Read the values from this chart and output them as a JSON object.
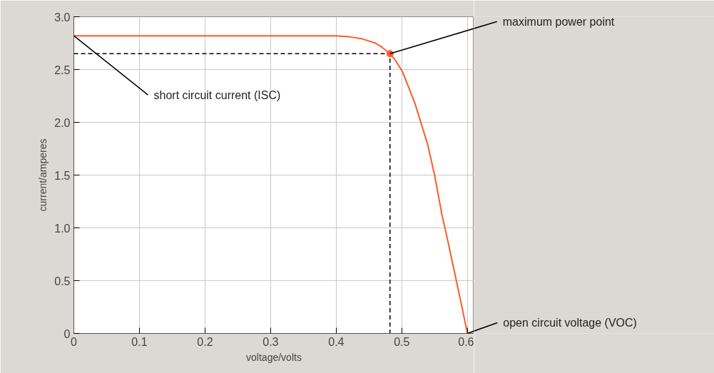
{
  "chart_data": {
    "type": "line",
    "xlabel": "voltage/volts",
    "ylabel": "current/amperes",
    "xlim": [
      0,
      0.61
    ],
    "ylim": [
      0,
      3.0
    ],
    "xticks": [
      0,
      0.1,
      0.2,
      0.3,
      0.4,
      0.5,
      0.6
    ],
    "yticks": [
      0,
      {
        "value": 0.5,
        "label": "0.5"
      },
      {
        "value": 1,
        "label": "1.0"
      },
      {
        "value": 1.5,
        "label": "1.5"
      },
      {
        "value": 2,
        "label": "2.0"
      },
      {
        "value": 2.5,
        "label": "2.5"
      },
      {
        "value": 3,
        "label": "3.0"
      }
    ],
    "grid": true,
    "series": [
      {
        "type": "line",
        "color": "#ff5a2a",
        "line_style": "solid",
        "x": [
          0,
          0.1,
          0.2,
          0.3,
          0.4,
          0.42,
          0.44,
          0.46,
          0.47,
          0.482,
          0.49,
          0.501,
          0.52,
          0.539,
          0.55,
          0.561,
          0.57,
          0.58,
          0.59,
          0.6
        ],
        "values": [
          2.82,
          2.82,
          2.82,
          2.82,
          2.82,
          2.81,
          2.79,
          2.75,
          2.71,
          2.65,
          2.59,
          2.48,
          2.18,
          1.8,
          1.5,
          1.13,
          0.88,
          0.59,
          0.3,
          0
        ]
      },
      {
        "type": "line",
        "color": "#000000",
        "line_style": "dashed",
        "x": [
          0,
          0.482,
          0.482
        ],
        "values": [
          2.65,
          2.65,
          0
        ]
      },
      {
        "type": "scatter",
        "color": "#ff5a2a",
        "marker": "circle",
        "x": [
          0.482
        ],
        "values": [
          2.65
        ]
      }
    ],
    "annotations": [
      {
        "text": "maximum power point",
        "x": 0.482,
        "y": 2.65
      },
      {
        "text": "short circuit current (ISC)",
        "x": 0,
        "y": 2.82
      },
      {
        "text": "open circuit voltage (VOC)",
        "x": 0.6,
        "y": 0
      }
    ]
  }
}
